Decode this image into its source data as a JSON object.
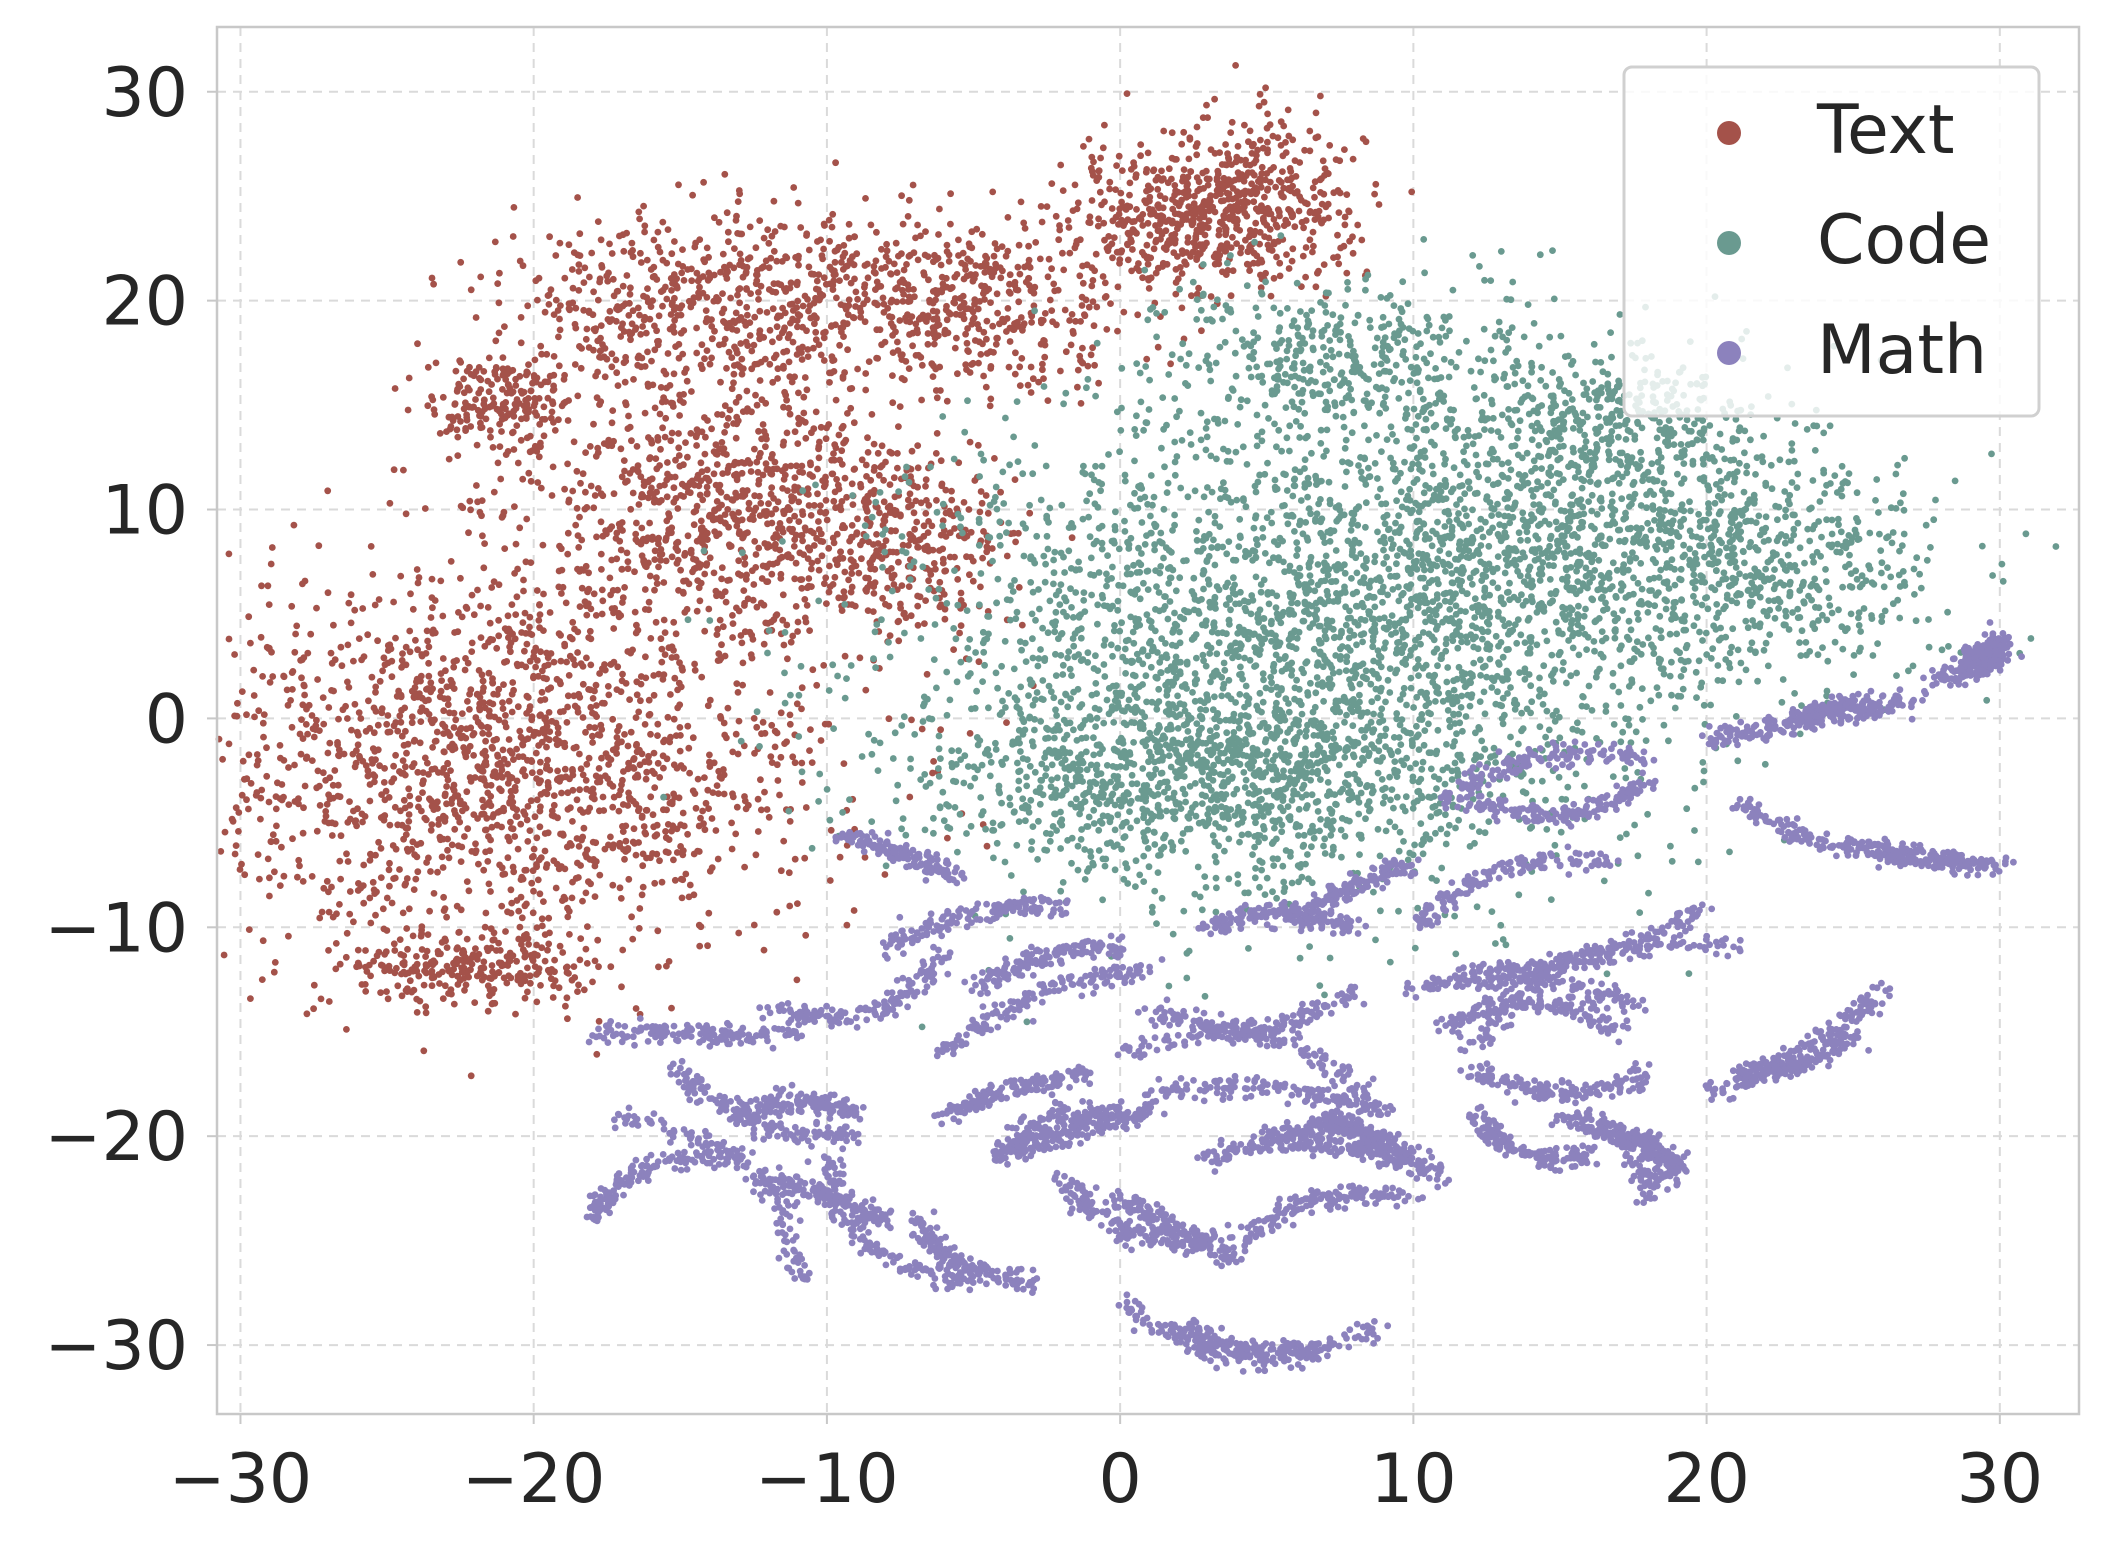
{
  "chart_data": {
    "type": "scatter",
    "title": "",
    "xlabel": "",
    "ylabel": "",
    "xlim": [
      -30.8,
      32.7
    ],
    "ylim": [
      -33.3,
      33.1
    ],
    "xticks": [
      -30,
      -20,
      -10,
      0,
      10,
      20,
      30
    ],
    "yticks": [
      -30,
      -20,
      -10,
      0,
      10,
      20,
      30
    ],
    "xtick_labels": [
      "−30",
      "−20",
      "−10",
      "0",
      "10",
      "20",
      "30"
    ],
    "ytick_labels": [
      "−30",
      "−20",
      "−10",
      "0",
      "10",
      "20",
      "30"
    ],
    "grid": true,
    "legend": {
      "position": "top-right"
    },
    "series": [
      {
        "name": "Text",
        "color": "#a4524a",
        "approx_points": 5200,
        "clusters": [
          {
            "cx": -21,
            "cy": -2,
            "sx": 5.6,
            "sy": 4.6,
            "w": 0.34
          },
          {
            "cx": -13,
            "cy": 10,
            "sx": 3.6,
            "sy": 3.2,
            "w": 0.18
          },
          {
            "cx": -14,
            "cy": 20,
            "sx": 3.4,
            "sy": 2.2,
            "w": 0.12
          },
          {
            "cx": -5,
            "cy": 20,
            "sx": 2.8,
            "sy": 2.0,
            "w": 0.09
          },
          {
            "cx": 2,
            "cy": 24,
            "sx": 2.0,
            "sy": 1.6,
            "w": 0.08
          },
          {
            "cx": 5,
            "cy": 25,
            "sx": 1.6,
            "sy": 2.0,
            "w": 0.06
          },
          {
            "cx": -21,
            "cy": 15,
            "sx": 1.3,
            "sy": 1.2,
            "w": 0.04
          },
          {
            "cx": -22,
            "cy": -12,
            "sx": 2.2,
            "sy": 0.9,
            "w": 0.05
          },
          {
            "cx": -7,
            "cy": 8,
            "sx": 1.5,
            "sy": 2.0,
            "w": 0.04
          }
        ]
      },
      {
        "name": "Code",
        "color": "#6a9a90",
        "approx_points": 5600,
        "clusters": [
          {
            "cx": 5,
            "cy": 3,
            "sx": 6.5,
            "sy": 5.5,
            "w": 0.45
          },
          {
            "cx": 2,
            "cy": -3,
            "sx": 5.0,
            "sy": 2.2,
            "w": 0.14
          },
          {
            "cx": 14,
            "cy": 8,
            "sx": 4.5,
            "sy": 4.0,
            "w": 0.18
          },
          {
            "cx": 22,
            "cy": 7,
            "sx": 3.0,
            "sy": 2.6,
            "w": 0.09
          },
          {
            "cx": 8,
            "cy": 17,
            "sx": 3.5,
            "sy": 2.2,
            "w": 0.08
          },
          {
            "cx": 17,
            "cy": 14,
            "sx": 2.5,
            "sy": 1.8,
            "w": 0.06
          }
        ]
      },
      {
        "name": "Math",
        "color": "#8c82bd",
        "approx_points": 7000,
        "arcs": [
          [
            -9.5,
            -5.5,
            -5.5,
            -7.5
          ],
          [
            -12,
            -14,
            -6,
            -11
          ],
          [
            -8,
            -11,
            -2,
            -9
          ],
          [
            -6,
            -16,
            1,
            -12
          ],
          [
            -5,
            -13,
            0,
            -11
          ],
          [
            -6,
            -19,
            -1,
            -17
          ],
          [
            -4,
            -21,
            1,
            -19
          ],
          [
            -18,
            -15,
            -11,
            -15
          ],
          [
            -15,
            -17,
            -9,
            -20
          ],
          [
            -13,
            -19,
            -9,
            -19
          ],
          [
            -17,
            -19,
            -11,
            -27
          ],
          [
            -18,
            -24,
            -13,
            -21
          ],
          [
            -12,
            -22,
            -8,
            -24
          ],
          [
            -10,
            -21,
            -5,
            -27
          ],
          [
            -7,
            -24,
            -3,
            -27
          ],
          [
            -4,
            -21,
            0,
            -19
          ],
          [
            -2,
            -22,
            3,
            -25
          ],
          [
            0,
            -16,
            9,
            -19
          ],
          [
            1,
            -14,
            8,
            -13
          ],
          [
            1,
            -18,
            9,
            -19
          ],
          [
            3,
            -21,
            9,
            -21
          ],
          [
            0,
            -23,
            4,
            -26
          ],
          [
            4,
            -25,
            10,
            -23
          ],
          [
            0,
            -28,
            9,
            -29
          ],
          [
            2,
            -29,
            7,
            -30
          ],
          [
            3,
            -10,
            8,
            -10
          ],
          [
            6,
            -10,
            10,
            -7
          ],
          [
            10,
            -10,
            17,
            -7
          ],
          [
            12,
            -12,
            20,
            -9
          ],
          [
            10,
            -13,
            18,
            -14
          ],
          [
            12,
            -16,
            21,
            -11
          ],
          [
            11,
            -15,
            17,
            -15
          ],
          [
            12,
            -17,
            18,
            -17
          ],
          [
            12,
            -19,
            16,
            -21
          ],
          [
            15,
            -19,
            18,
            -23
          ],
          [
            16,
            -20,
            19,
            -22
          ],
          [
            20,
            -18,
            26,
            -13
          ],
          [
            21,
            -17,
            25,
            -15
          ],
          [
            11,
            -4,
            18,
            -2
          ],
          [
            12,
            -4,
            18,
            -3
          ],
          [
            20,
            -1,
            25,
            1
          ],
          [
            23,
            0,
            27,
            1
          ],
          [
            21,
            -4,
            29,
            -7
          ],
          [
            25,
            -6,
            30,
            -7
          ],
          [
            28,
            2,
            30,
            4
          ],
          [
            29,
            3,
            30,
            3
          ],
          [
            5,
            -20,
            10,
            -21
          ],
          [
            7,
            -19,
            11,
            -22
          ]
        ]
      }
    ]
  }
}
